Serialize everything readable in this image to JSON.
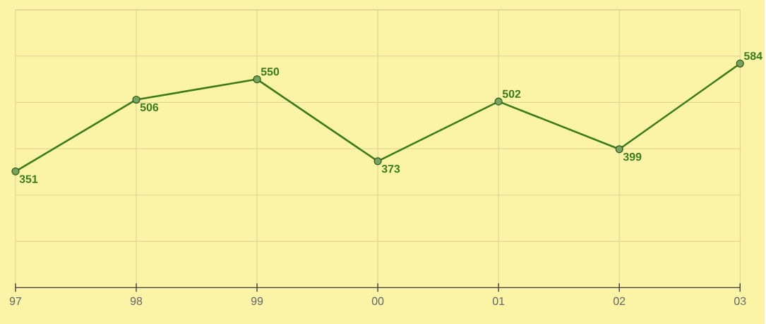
{
  "chart_data": {
    "type": "line",
    "categories": [
      "97",
      "98",
      "99",
      "00",
      "01",
      "02",
      "03"
    ],
    "values": [
      351,
      506,
      550,
      373,
      502,
      399,
      584
    ],
    "color": "#3d7a1c",
    "marker": "circle",
    "line_style": "solid",
    "data_labels": true,
    "grid": true,
    "tick_labels": "x",
    "ylim": [
      100,
      700
    ],
    "yticks": [
      {
        "value": 100,
        "label": null
      },
      {
        "value": 200,
        "label": null
      },
      {
        "value": 300,
        "label": null
      },
      {
        "value": 400,
        "label": null
      },
      {
        "value": 500,
        "label": null
      },
      {
        "value": 600,
        "label": null
      },
      {
        "value": 700,
        "label": null
      }
    ]
  }
}
